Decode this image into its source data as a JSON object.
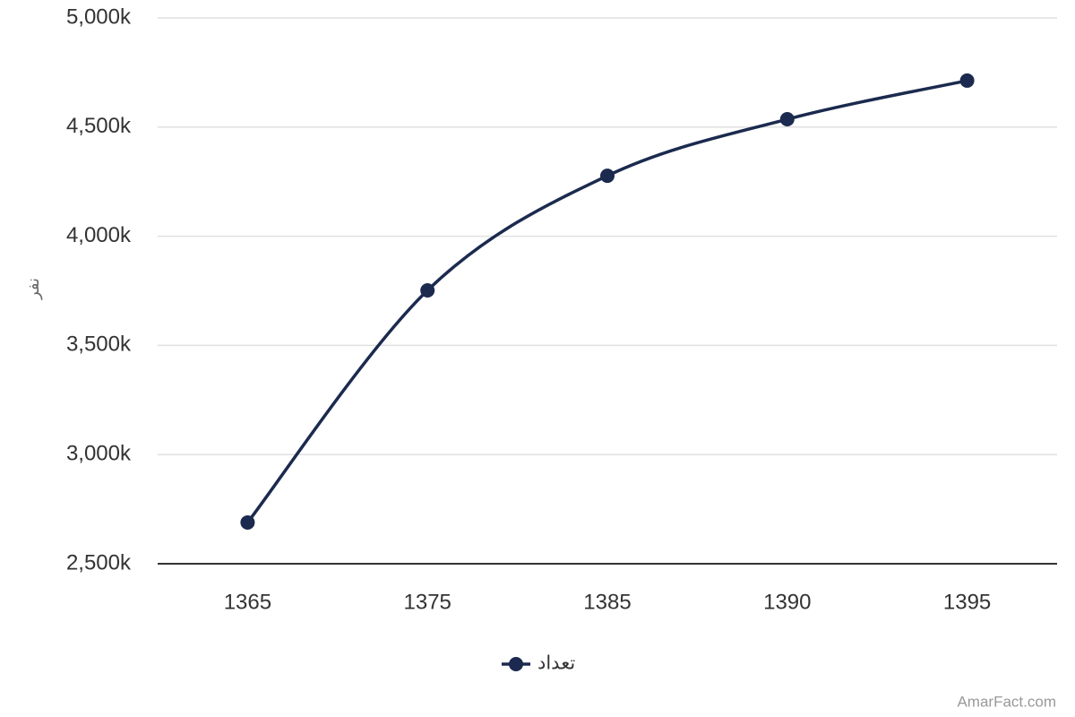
{
  "chart_data": {
    "type": "line",
    "y_label": "نفر",
    "categories": [
      "1365",
      "1375",
      "1385",
      "1390",
      "1395"
    ],
    "series": [
      {
        "name": "تعداد",
        "color": "#1b2a4e",
        "values": [
          2689000,
          3752000,
          4277000,
          4536000,
          4713000
        ]
      }
    ],
    "ylim": [
      2500000,
      5000000
    ],
    "yticks": [
      {
        "value": 2500000,
        "label": "2,500k"
      },
      {
        "value": 3000000,
        "label": "3,000k"
      },
      {
        "value": 3500000,
        "label": "3,500k"
      },
      {
        "value": 4000000,
        "label": "4,000k"
      },
      {
        "value": 4500000,
        "label": "4,500k"
      },
      {
        "value": 5000000,
        "label": "5,000k"
      }
    ],
    "grid": true,
    "legend": "bottom",
    "credit": "AmarFact.com"
  }
}
